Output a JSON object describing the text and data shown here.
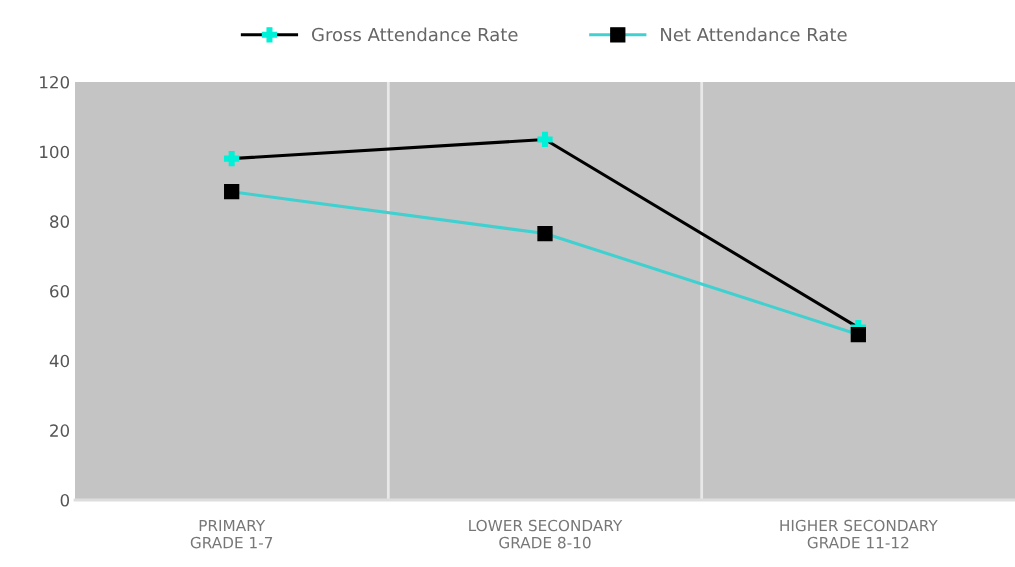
{
  "chart_data": {
    "type": "line",
    "categories": [
      "PRIMARY\nGRADE 1-7",
      "LOWER SECONDARY\nGRADE 8-10",
      "HIGHER SECONDARY\nGRADE 11-12"
    ],
    "series": [
      {
        "name": "Gross Attendance Rate",
        "color": "#000000",
        "marker": "cross",
        "values": [
          98,
          103.5,
          49.5
        ]
      },
      {
        "name": "Net Attendance Rate",
        "color": "#40d0d0",
        "marker": "square",
        "values": [
          88.5,
          76.5,
          47.5
        ]
      }
    ],
    "ylim": [
      0,
      120
    ],
    "yticks": [
      0,
      20,
      40,
      60,
      80,
      100,
      120
    ],
    "grid": "x",
    "legend": "top"
  }
}
